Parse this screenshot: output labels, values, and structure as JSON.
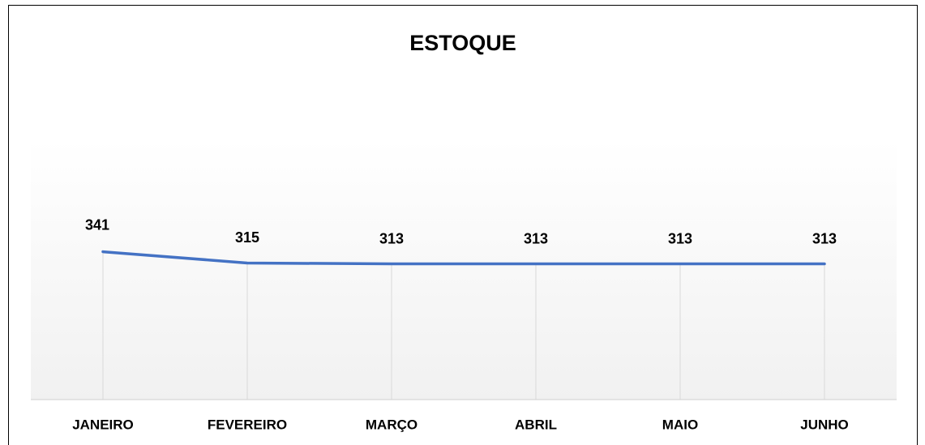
{
  "chart_data": {
    "type": "line",
    "title": "ESTOQUE",
    "categories": [
      "JANEIRO",
      "FEVEREIRO",
      "MARÇO",
      "ABRIL",
      "MAIO",
      "JUNHO"
    ],
    "series": [
      {
        "name": "ESTOQUE",
        "color": "#4472c4",
        "values": [
          341,
          315,
          313,
          313,
          313,
          313
        ]
      }
    ],
    "ylim": [
      0,
      600
    ]
  }
}
